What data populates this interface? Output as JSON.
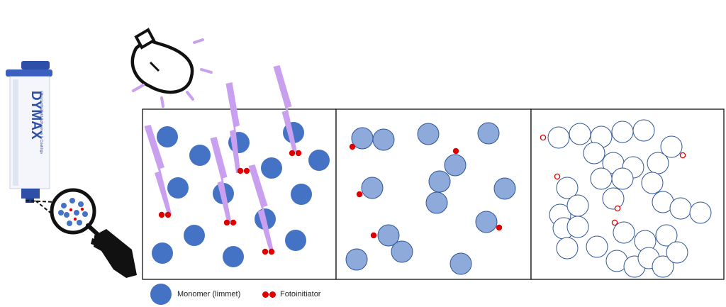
{
  "syringe": {
    "brand": "DYMAX",
    "product_text": "Ultra Light-Weld Adhesives & Coatings"
  },
  "legend": {
    "monomer_label": "Monomer (limmet)",
    "photoinitiator_label": "Fotoinitiator"
  },
  "colors": {
    "monomer_fill": "#4472c4",
    "monomer_partial_fill": "#8eaadb",
    "monomer_outline": "#2f5597",
    "photoinitiator": "#e00000",
    "uv_light": "#c9a0f0",
    "syringe_blue": "#2e4fa8"
  },
  "icons": [
    "light-bulb-icon",
    "magnifier-icon",
    "hand-icon",
    "lightning-bolt-icon"
  ],
  "panels": [
    {
      "state": "before-curing",
      "monomers": [
        [
          236,
          193
        ],
        [
          282,
          219
        ],
        [
          337,
          201
        ],
        [
          414,
          187
        ],
        [
          450,
          226
        ],
        [
          383,
          237
        ],
        [
          251,
          265
        ],
        [
          315,
          273
        ],
        [
          425,
          274
        ],
        [
          374,
          309
        ],
        [
          274,
          332
        ],
        [
          229,
          357
        ],
        [
          329,
          362
        ],
        [
          417,
          339
        ]
      ],
      "photoinitiator_pairs": [
        [
          232,
          303
        ],
        [
          324,
          314
        ],
        [
          343,
          241
        ],
        [
          416,
          216
        ],
        [
          378,
          355
        ]
      ],
      "uv_bolts": [
        [
          208,
          178,
          238,
          302
        ],
        [
          323,
          118,
          335,
          244
        ],
        [
          301,
          195,
          322,
          312
        ],
        [
          355,
          234,
          382,
          354
        ],
        [
          390,
          94,
          415,
          214
        ]
      ]
    },
    {
      "state": "curing",
      "monomers": [
        [
          511,
          195
        ],
        [
          541,
          197
        ],
        [
          604,
          189
        ],
        [
          689,
          188
        ],
        [
          642,
          233
        ],
        [
          620,
          256
        ],
        [
          616,
          286
        ],
        [
          525,
          265
        ],
        [
          712,
          266
        ],
        [
          686,
          313
        ],
        [
          548,
          332
        ],
        [
          567,
          355
        ],
        [
          503,
          366
        ],
        [
          650,
          372
        ]
      ],
      "photoinitiators": [
        [
          497,
          207
        ],
        [
          643,
          213
        ],
        [
          507,
          274
        ],
        [
          527,
          332
        ],
        [
          704,
          321
        ]
      ]
    },
    {
      "state": "cured",
      "monomers": [
        [
          788,
          194
        ],
        [
          818,
          189
        ],
        [
          848,
          193
        ],
        [
          878,
          186
        ],
        [
          908,
          184
        ],
        [
          838,
          216
        ],
        [
          865,
          230
        ],
        [
          893,
          236
        ],
        [
          928,
          230
        ],
        [
          947,
          207
        ],
        [
          848,
          252
        ],
        [
          878,
          252
        ],
        [
          920,
          258
        ],
        [
          800,
          265
        ],
        [
          865,
          280
        ],
        [
          790,
          303
        ],
        [
          815,
          290
        ],
        [
          935,
          285
        ],
        [
          960,
          294
        ],
        [
          988,
          300
        ],
        [
          795,
          322
        ],
        [
          815,
          320
        ],
        [
          880,
          328
        ],
        [
          910,
          340
        ],
        [
          940,
          332
        ],
        [
          800,
          350
        ],
        [
          842,
          348
        ],
        [
          870,
          368
        ],
        [
          895,
          376
        ],
        [
          915,
          364
        ],
        [
          935,
          376
        ],
        [
          955,
          356
        ]
      ],
      "photoinitiators": [
        [
          766,
          194
        ],
        [
          786,
          249
        ],
        [
          963,
          219
        ],
        [
          871,
          294
        ],
        [
          867,
          314
        ]
      ]
    }
  ]
}
